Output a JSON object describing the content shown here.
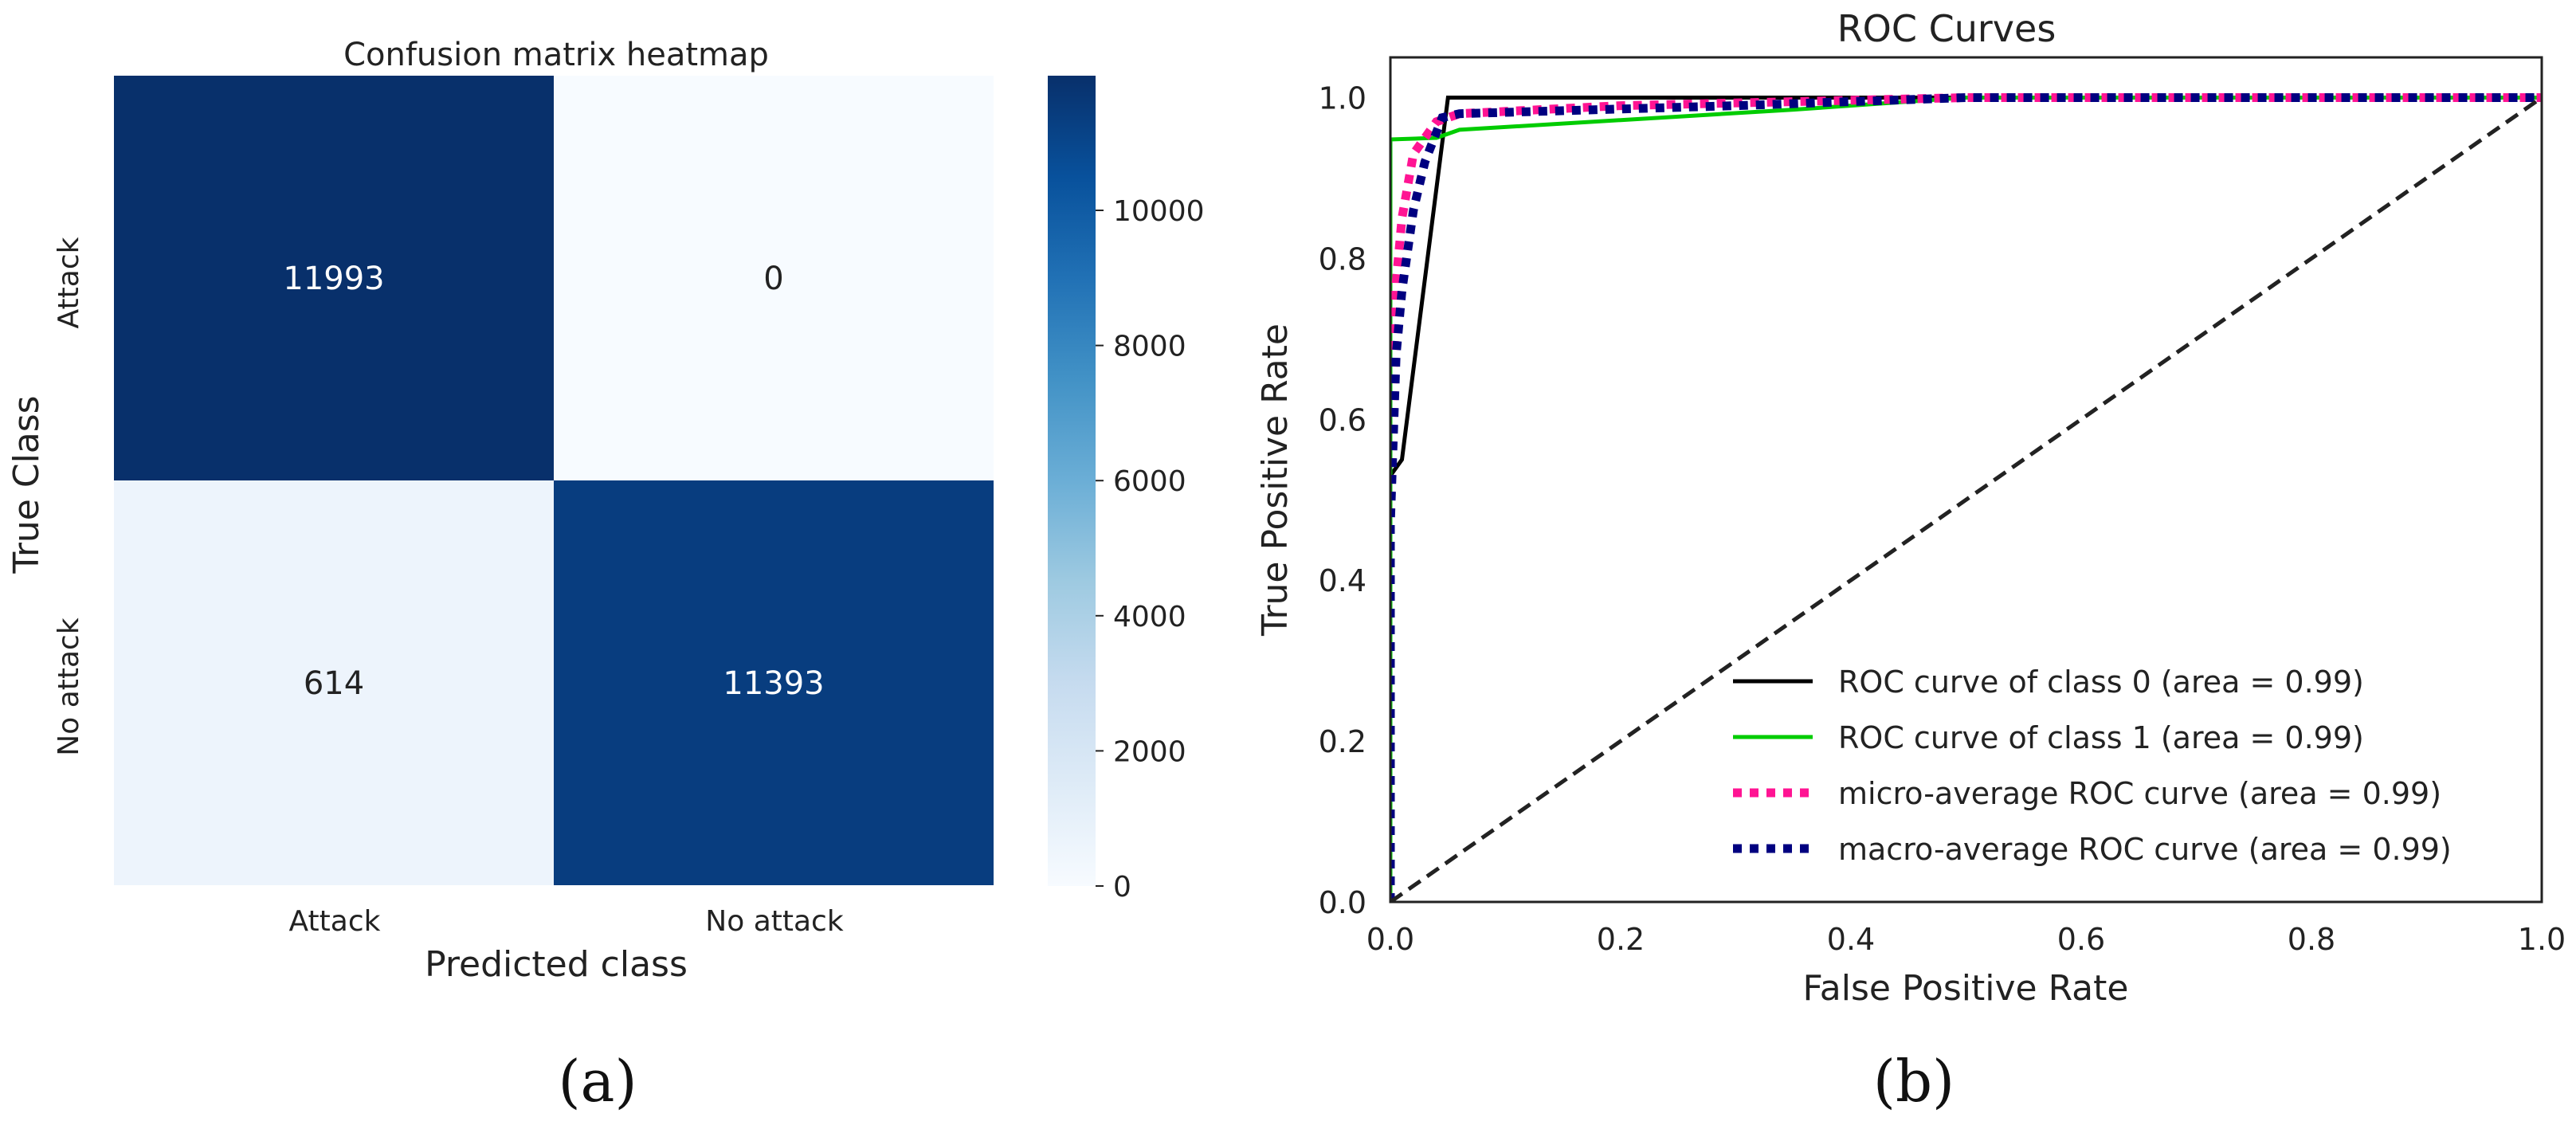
{
  "chart_data": [
    {
      "type": "heatmap",
      "title": "Confusion matrix heatmap",
      "xlabel": "Predicted class",
      "ylabel": "True Class",
      "x_categories": [
        "Attack",
        "No attack"
      ],
      "y_categories": [
        "Attack",
        "No attack"
      ],
      "values": [
        [
          11993,
          0
        ],
        [
          614,
          11393
        ]
      ],
      "cell_labels": [
        [
          "11993",
          "0"
        ],
        [
          "614",
          "11393"
        ]
      ],
      "colorbar": {
        "range": [
          0,
          11993
        ],
        "ticks": [
          0,
          2000,
          4000,
          6000,
          8000,
          10000
        ],
        "tick_labels": [
          "0",
          "2000",
          "4000",
          "6000",
          "8000",
          "10000"
        ],
        "colormap": "Blues",
        "colors": [
          "#f7fbff",
          "#deebf7",
          "#c6dbef",
          "#9ecae1",
          "#6baed6",
          "#4292c6",
          "#2171b5",
          "#08519c",
          "#08306b"
        ]
      },
      "panel_label": "(a)"
    },
    {
      "type": "line",
      "title": "ROC Curves",
      "xlabel": "False Positive Rate",
      "ylabel": "True Positive Rate",
      "xlim": [
        0.0,
        1.0
      ],
      "ylim": [
        0.0,
        1.05
      ],
      "xticks": [
        "0.0",
        "0.2",
        "0.4",
        "0.6",
        "0.8",
        "1.0"
      ],
      "yticks": [
        "0.0",
        "0.2",
        "0.4",
        "0.6",
        "0.8",
        "1.0"
      ],
      "grid": false,
      "legend_position": "lower-right",
      "series": [
        {
          "name": "ROC curve of class 0 (area = 0.99)",
          "color": "#000000",
          "style": "solid",
          "x": [
            0.0,
            0.0,
            0.01,
            0.05,
            1.0
          ],
          "y": [
            0.0,
            0.53,
            0.55,
            1.0,
            1.0
          ]
        },
        {
          "name": "ROC curve of class 1 (area = 0.99)",
          "color": "#00cc00",
          "style": "solid",
          "x": [
            0.0,
            0.0,
            0.04,
            0.06,
            0.2,
            0.35,
            0.5,
            1.0
          ],
          "y": [
            0.0,
            0.948,
            0.95,
            0.96,
            0.972,
            0.985,
            1.0,
            1.0
          ]
        },
        {
          "name": "micro-average ROC curve (area = 0.99)",
          "color": "#ff1493",
          "style": "dotted",
          "x": [
            0.0,
            0.0,
            0.005,
            0.01,
            0.02,
            0.04,
            0.06,
            0.2,
            0.5,
            1.0
          ],
          "y": [
            0.0,
            0.5,
            0.77,
            0.85,
            0.93,
            0.97,
            0.98,
            0.99,
            1.0,
            1.0
          ]
        },
        {
          "name": "macro-average ROC curve (area = 0.99)",
          "color": "#000080",
          "style": "dotted",
          "x": [
            0.0,
            0.0,
            0.005,
            0.01,
            0.02,
            0.03,
            0.045,
            0.06,
            0.3,
            0.5,
            1.0
          ],
          "y": [
            0.0,
            0.47,
            0.68,
            0.76,
            0.86,
            0.92,
            0.975,
            0.98,
            0.99,
            1.0,
            1.0
          ]
        },
        {
          "name": "",
          "color": "#222222",
          "style": "dashed",
          "x": [
            0.0,
            1.0
          ],
          "y": [
            0.0,
            1.0
          ]
        }
      ],
      "panel_label": "(b)"
    }
  ]
}
